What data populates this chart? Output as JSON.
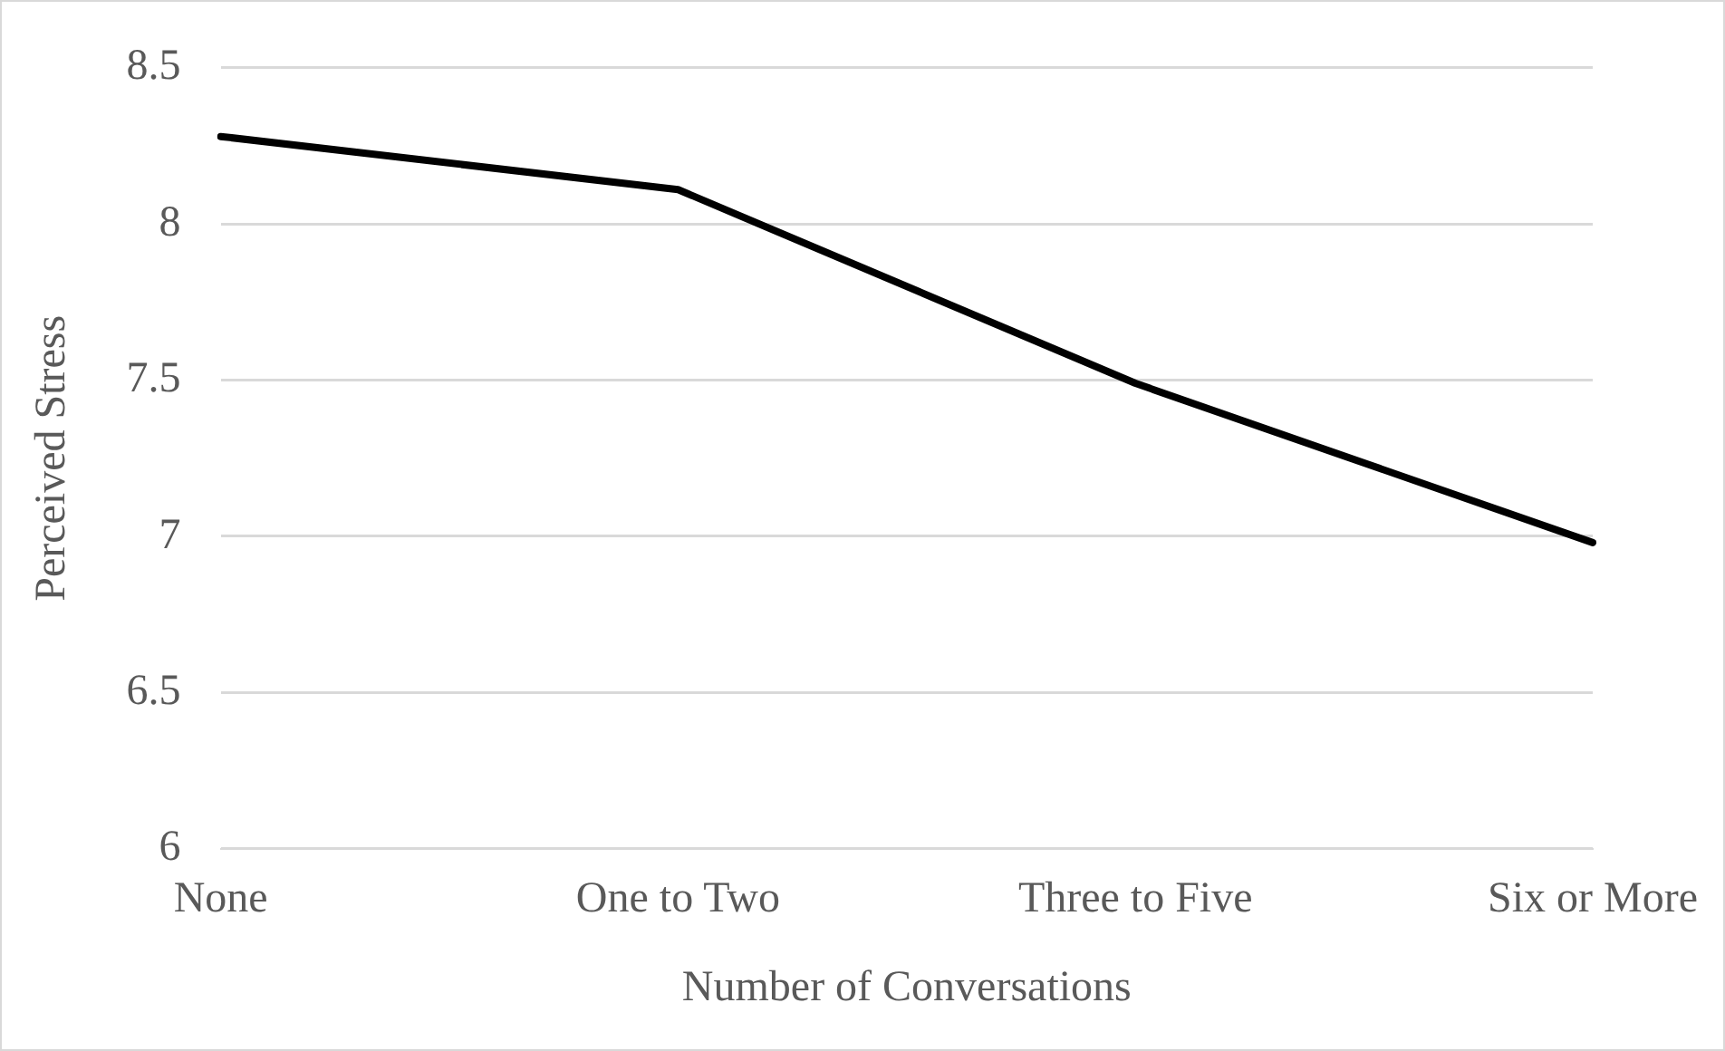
{
  "chart_data": {
    "type": "line",
    "xlabel": "Number of Conversations",
    "ylabel": "Perceived Stress",
    "categories": [
      "None",
      "One to Two",
      "Three to Five",
      "Six or More"
    ],
    "series": [
      {
        "color": "#000000",
        "values": [
          8.28,
          8.11,
          7.49,
          6.98
        ]
      }
    ],
    "ylim": [
      6,
      8.5
    ],
    "yticks": [
      6,
      6.5,
      7,
      7.5,
      8,
      8.5
    ],
    "grid": "y",
    "legend": false,
    "marker": "none",
    "line_style": "solid"
  }
}
